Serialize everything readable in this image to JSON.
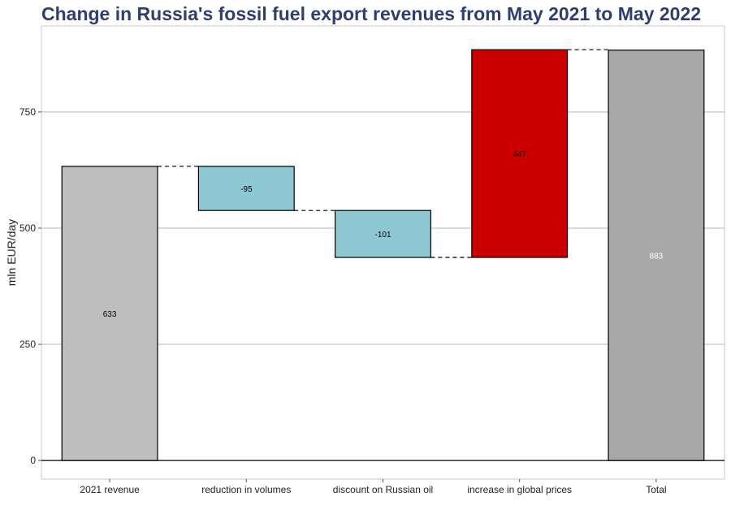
{
  "title": "Change in Russia's fossil fuel export revenues from May 2021 to May 2022",
  "chart_data": {
    "type": "waterfall",
    "title": "Change in Russia's fossil fuel export revenues from May 2021 to May 2022",
    "xlabel": "",
    "ylabel": "mln EUR/day",
    "ylim": [
      -40,
      935
    ],
    "yticks": [
      0,
      250,
      500,
      750
    ],
    "grid": true,
    "legend": "none",
    "categories": [
      "2021 revenue",
      "reduction in volumes",
      "discount on Russian oil",
      "increase in global prices",
      "Total"
    ],
    "steps": [
      {
        "category": "2021 revenue",
        "start": 0,
        "end": 633,
        "label": "633",
        "color": "#bebebe",
        "label_color": "#000000"
      },
      {
        "category": "reduction in volumes",
        "start": 633,
        "end": 538,
        "label": "-95",
        "color": "#8ec8d2",
        "label_color": "#000000"
      },
      {
        "category": "discount on Russian oil",
        "start": 538,
        "end": 437,
        "label": "-101",
        "color": "#8ec8d2",
        "label_color": "#000000"
      },
      {
        "category": "increase in global prices",
        "start": 437,
        "end": 884,
        "label": "447",
        "color": "#cc0000",
        "label_color": "#000000"
      },
      {
        "category": "Total",
        "start": 0,
        "end": 883,
        "label": "883",
        "color": "#a8a8a8",
        "label_color": "#ffffff"
      }
    ]
  }
}
